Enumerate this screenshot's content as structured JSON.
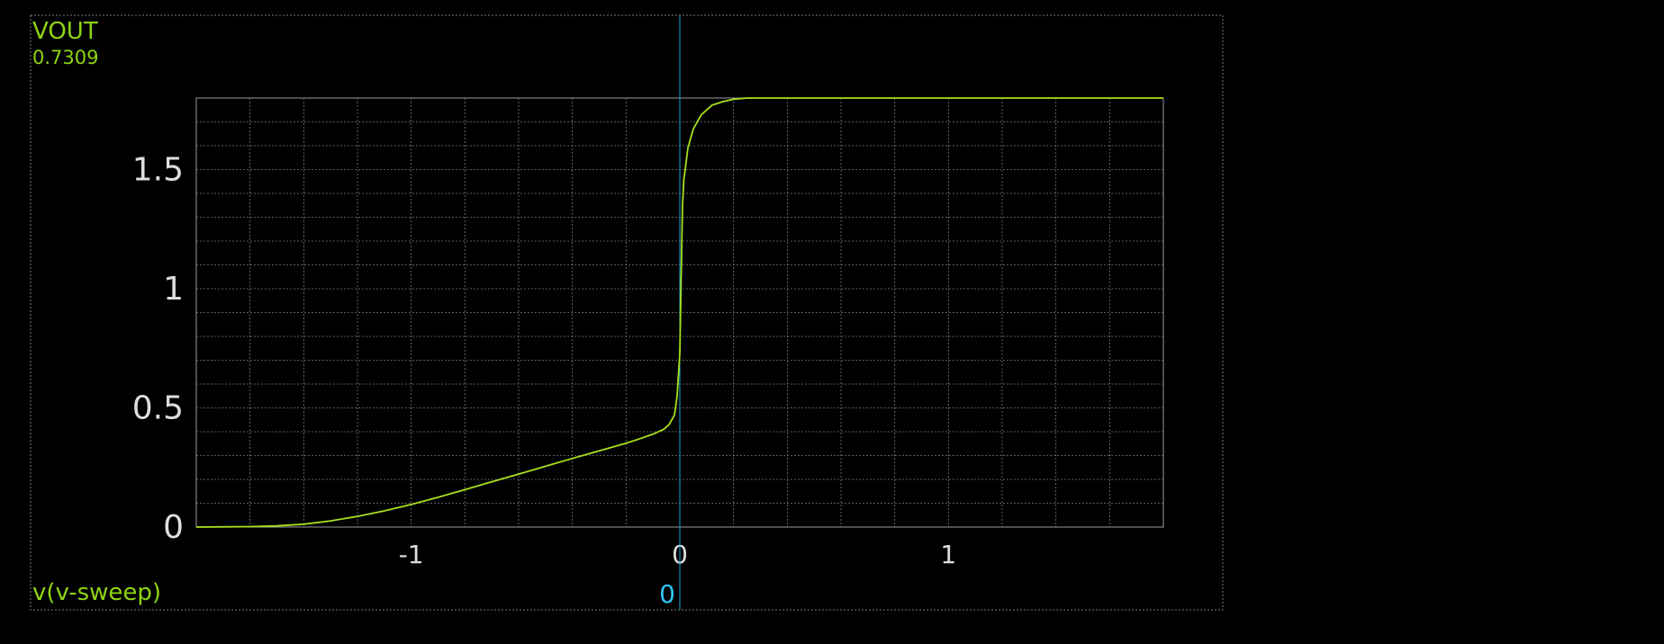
{
  "colors": {
    "background": "#000000",
    "trace": "#a8e01a",
    "cursor": "#1aa6d8",
    "cursor_label": "#2ec4f0",
    "grid": "#7a7a7a",
    "frame": "#9a9a9a",
    "tick_label": "#dedede",
    "signal_label": "#8fd412"
  },
  "signal": {
    "name": "VOUT",
    "cursor_value": "0.7309",
    "x_variable": "v(v-sweep)"
  },
  "cursor": {
    "x": 0,
    "label": "0"
  },
  "chart_data": {
    "type": "line",
    "title": "",
    "xlabel": "v(v-sweep)",
    "ylabel": "VOUT",
    "xlim": [
      -1.8,
      1.8
    ],
    "ylim": [
      0,
      1.8
    ],
    "x_ticks": [
      {
        "value": -1,
        "label": "-1"
      },
      {
        "value": 0,
        "label": "0"
      },
      {
        "value": 1,
        "label": "1"
      }
    ],
    "y_ticks": [
      {
        "value": 0,
        "label": "0"
      },
      {
        "value": 0.5,
        "label": "0.5"
      },
      {
        "value": 1,
        "label": "1"
      },
      {
        "value": 1.5,
        "label": "1.5"
      }
    ],
    "grid": true,
    "series": [
      {
        "x": [
          -1.8,
          -1.6,
          -1.5,
          -1.4,
          -1.3,
          -1.2,
          -1.1,
          -1.0,
          -0.9,
          -0.8,
          -0.7,
          -0.6,
          -0.5,
          -0.4,
          -0.3,
          -0.2,
          -0.15,
          -0.1,
          -0.06,
          -0.04,
          -0.02,
          -0.01,
          0.0,
          0.005,
          0.01,
          0.015,
          0.02,
          0.03,
          0.05,
          0.08,
          0.12,
          0.16,
          0.2,
          0.25,
          0.3,
          0.5,
          1.0,
          1.5,
          1.8
        ],
        "y": [
          0.0,
          0.002,
          0.005,
          0.012,
          0.026,
          0.045,
          0.068,
          0.095,
          0.125,
          0.157,
          0.19,
          0.222,
          0.255,
          0.288,
          0.32,
          0.352,
          0.37,
          0.39,
          0.41,
          0.43,
          0.47,
          0.55,
          0.7309,
          1.05,
          1.35,
          1.46,
          1.5,
          1.59,
          1.67,
          1.73,
          1.77,
          1.785,
          1.795,
          1.8,
          1.8,
          1.8,
          1.8,
          1.8,
          1.8
        ]
      }
    ]
  }
}
